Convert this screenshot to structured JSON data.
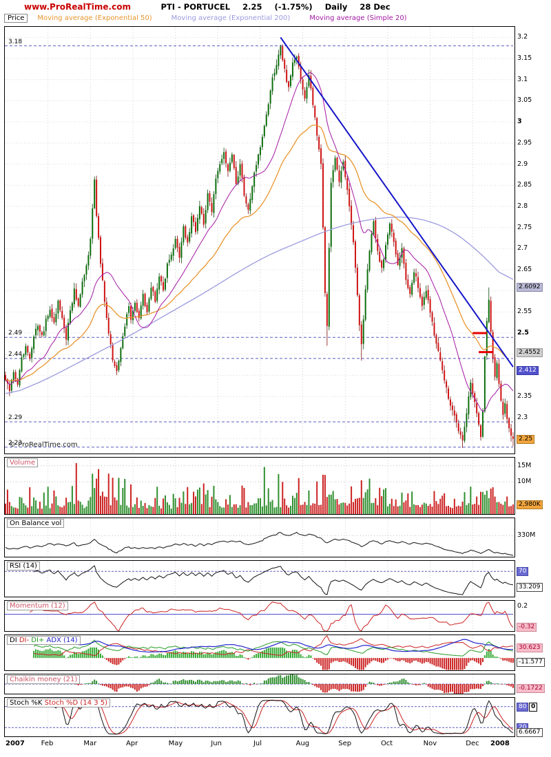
{
  "header": {
    "site": "www.ProRealTime.com",
    "instrument": "PTI - PORTUCEL",
    "last": "2.25",
    "change": "(-1.75%)",
    "period": "Daily",
    "date": "28 Dec"
  },
  "watermark": "© ProRealTime.com",
  "axis": {
    "months": [
      "2007",
      "Feb",
      "Mar",
      "Apr",
      "May",
      "Jun",
      "Jul",
      "Aug",
      "Sep",
      "Oct",
      "Nov",
      "Dec",
      "2008"
    ]
  },
  "legend": {
    "price_label": "Price",
    "items": [
      {
        "label": "Moving average (Exponential 50)",
        "color": "#e8952e"
      },
      {
        "label": "Moving average (Exponential 200)",
        "color": "#9a9ae0"
      },
      {
        "label": "Moving average (Simple 20)",
        "color": "#a318a3"
      }
    ]
  },
  "panel_titles": {
    "volume": [
      {
        "text": "Volume",
        "color": "#cc5566"
      }
    ],
    "obv": [
      {
        "text": "On Balance vol",
        "color": "#000000"
      }
    ],
    "rsi": [
      {
        "text": "RSI (14)",
        "color": "#000000"
      }
    ],
    "momentum": [
      {
        "text": "Momentum (12)",
        "color": "#cc5566"
      }
    ],
    "dmi": [
      {
        "text": "DI ",
        "color": "#000000"
      },
      {
        "text": "DI- ",
        "color": "#cc2222"
      },
      {
        "text": "DI+ ",
        "color": "#229922"
      },
      {
        "text": "ADX (14)",
        "color": "#2222cc"
      }
    ],
    "chaikin": [
      {
        "text": "Chaikin money (21)",
        "color": "#cc5566"
      }
    ],
    "stoch": [
      {
        "text": "Stoch %K ",
        "color": "#000000"
      },
      {
        "text": "Stoch %D (14 3 5)",
        "color": "#cc2222"
      }
    ]
  },
  "chart_data": {
    "type": "candlestick",
    "title": "PTI - PORTUCEL Daily, year 2007 (Jan to Dec), last 2.25 (-1.75%) on 28 Dec",
    "trading_days": 252,
    "price_panel": {
      "ylim": [
        2.215,
        3.225
      ],
      "yticks": [
        3.2,
        3.15,
        3.1,
        3.05,
        3,
        2.95,
        2.9,
        2.85,
        2.8,
        2.75,
        2.7,
        2.65,
        2.6,
        2.55,
        2.5,
        2.45,
        2.4,
        2.35,
        2.3,
        2.25
      ],
      "bold_ticks": [
        3,
        2.5
      ],
      "hidden_ticks": [
        2.6,
        2.45,
        2.4,
        2.25
      ],
      "level_lines": [
        3.18,
        2.49,
        2.44,
        2.29,
        2.23
      ],
      "up_color": "#0c6e0c",
      "down_color": "#cf1212",
      "close_anchors": [
        [
          0,
          2.39
        ],
        [
          2,
          2.36
        ],
        [
          4,
          2.41
        ],
        [
          6,
          2.38
        ],
        [
          8,
          2.44
        ],
        [
          10,
          2.47
        ],
        [
          12,
          2.44
        ],
        [
          14,
          2.49
        ],
        [
          16,
          2.52
        ],
        [
          18,
          2.49
        ],
        [
          20,
          2.53
        ],
        [
          22,
          2.56
        ],
        [
          24,
          2.52
        ],
        [
          26,
          2.58
        ],
        [
          28,
          2.54
        ],
        [
          30,
          2.49
        ],
        [
          32,
          2.55
        ],
        [
          34,
          2.6
        ],
        [
          36,
          2.56
        ],
        [
          38,
          2.62
        ],
        [
          40,
          2.66
        ],
        [
          42,
          2.72
        ],
        [
          43,
          2.8
        ],
        [
          44,
          2.86
        ],
        [
          45,
          2.78
        ],
        [
          47,
          2.66
        ],
        [
          49,
          2.58
        ],
        [
          51,
          2.5
        ],
        [
          53,
          2.44
        ],
        [
          55,
          2.41
        ],
        [
          57,
          2.47
        ],
        [
          59,
          2.52
        ],
        [
          61,
          2.56
        ],
        [
          62,
          2.53
        ],
        [
          64,
          2.57
        ],
        [
          66,
          2.53
        ],
        [
          68,
          2.59
        ],
        [
          70,
          2.55
        ],
        [
          72,
          2.61
        ],
        [
          74,
          2.58
        ],
        [
          76,
          2.64
        ],
        [
          78,
          2.6
        ],
        [
          80,
          2.66
        ],
        [
          82,
          2.69
        ],
        [
          84,
          2.72
        ],
        [
          86,
          2.68
        ],
        [
          88,
          2.75
        ],
        [
          90,
          2.71
        ],
        [
          92,
          2.78
        ],
        [
          94,
          2.74
        ],
        [
          96,
          2.8
        ],
        [
          98,
          2.76
        ],
        [
          100,
          2.83
        ],
        [
          102,
          2.79
        ],
        [
          104,
          2.86
        ],
        [
          106,
          2.9
        ],
        [
          108,
          2.93
        ],
        [
          110,
          2.88
        ],
        [
          112,
          2.92
        ],
        [
          114,
          2.85
        ],
        [
          116,
          2.9
        ],
        [
          118,
          2.83
        ],
        [
          120,
          2.79
        ],
        [
          122,
          2.85
        ],
        [
          124,
          2.9
        ],
        [
          126,
          2.94
        ],
        [
          128,
          2.99
        ],
        [
          130,
          3.04
        ],
        [
          132,
          3.1
        ],
        [
          134,
          3.14
        ],
        [
          136,
          3.18
        ],
        [
          138,
          3.12
        ],
        [
          140,
          3.08
        ],
        [
          142,
          3.14
        ],
        [
          144,
          3.16
        ],
        [
          146,
          3.1
        ],
        [
          148,
          3.06
        ],
        [
          150,
          3.11
        ],
        [
          152,
          3.04
        ],
        [
          154,
          2.97
        ],
        [
          156,
          2.9
        ],
        [
          158,
          2.6
        ],
        [
          159,
          2.52
        ],
        [
          160,
          2.7
        ],
        [
          161,
          2.85
        ],
        [
          163,
          2.91
        ],
        [
          165,
          2.86
        ],
        [
          167,
          2.9
        ],
        [
          169,
          2.84
        ],
        [
          171,
          2.76
        ],
        [
          173,
          2.66
        ],
        [
          175,
          2.52
        ],
        [
          176,
          2.47
        ],
        [
          178,
          2.6
        ],
        [
          180,
          2.7
        ],
        [
          182,
          2.76
        ],
        [
          184,
          2.7
        ],
        [
          186,
          2.65
        ],
        [
          188,
          2.71
        ],
        [
          190,
          2.76
        ],
        [
          192,
          2.71
        ],
        [
          194,
          2.66
        ],
        [
          196,
          2.7
        ],
        [
          198,
          2.63
        ],
        [
          200,
          2.59
        ],
        [
          202,
          2.65
        ],
        [
          204,
          2.61
        ],
        [
          206,
          2.56
        ],
        [
          208,
          2.6
        ],
        [
          210,
          2.55
        ],
        [
          212,
          2.5
        ],
        [
          214,
          2.46
        ],
        [
          216,
          2.41
        ],
        [
          218,
          2.37
        ],
        [
          220,
          2.33
        ],
        [
          222,
          2.3
        ],
        [
          224,
          2.27
        ],
        [
          226,
          2.245
        ],
        [
          228,
          2.31
        ],
        [
          230,
          2.38
        ],
        [
          232,
          2.34
        ],
        [
          234,
          2.28
        ],
        [
          235,
          2.25
        ],
        [
          236,
          2.32
        ],
        [
          237,
          2.44
        ],
        [
          238,
          2.53
        ],
        [
          239,
          2.575
        ],
        [
          240,
          2.5
        ],
        [
          241,
          2.44
        ],
        [
          242,
          2.4
        ],
        [
          243,
          2.43
        ],
        [
          244,
          2.38
        ],
        [
          245,
          2.34
        ],
        [
          246,
          2.31
        ],
        [
          247,
          2.335
        ],
        [
          248,
          2.3
        ],
        [
          249,
          2.28
        ],
        [
          250,
          2.26
        ],
        [
          251,
          2.25
        ]
      ],
      "key_extremes": [
        {
          "day": 136,
          "type": "high",
          "value": 3.183
        },
        {
          "day": 159,
          "type": "low",
          "value": 2.47
        },
        {
          "day": 176,
          "type": "low",
          "value": 2.435
        },
        {
          "day": 222,
          "type": "low",
          "value": 2.292
        },
        {
          "day": 226,
          "type": "low",
          "value": 2.228
        },
        {
          "day": 239,
          "type": "high",
          "value": 2.608
        },
        {
          "day": 251,
          "type": "low",
          "value": 2.232
        }
      ],
      "ema200_anchors": [
        [
          0,
          2.35
        ],
        [
          20,
          2.39
        ],
        [
          40,
          2.44
        ],
        [
          60,
          2.49
        ],
        [
          80,
          2.545
        ],
        [
          100,
          2.6
        ],
        [
          115,
          2.645
        ],
        [
          130,
          2.685
        ],
        [
          145,
          2.715
        ],
        [
          160,
          2.745
        ],
        [
          175,
          2.765
        ],
        [
          190,
          2.775
        ],
        [
          200,
          2.775
        ],
        [
          210,
          2.765
        ],
        [
          220,
          2.745
        ],
        [
          230,
          2.71
        ],
        [
          240,
          2.665
        ],
        [
          251,
          2.609
        ]
      ],
      "sma_period": 20,
      "ema_fast_period": 50,
      "ema_slow_period": 200,
      "trendline": {
        "from": [
          136,
          3.2
        ],
        "to": [
          252,
          2.42
        ],
        "color": "#1414c8"
      },
      "support_marks": [
        {
          "from": 231,
          "to": 238,
          "price": 2.5
        },
        {
          "from": 234,
          "to": 241,
          "price": 2.455
        }
      ],
      "value_boxes": [
        {
          "name": "ema200-value",
          "text": "2.6092",
          "value": 2.6092,
          "bg": "#babad6",
          "fg": "#000000",
          "bd": "#8888aa"
        },
        {
          "name": "ema50-value",
          "text": "2.4552",
          "value": 2.4552,
          "bg": "#cfcfcf",
          "fg": "#000000",
          "bd": "#999999"
        },
        {
          "name": "sma20-value",
          "text": "2.412",
          "value": 2.412,
          "bg": "#5252cc",
          "fg": "#ffffff",
          "bd": "#3333aa"
        },
        {
          "name": "last-price-tag",
          "text": "2.25",
          "value": 2.25,
          "bg": "#f2a43c",
          "fg": "#000000",
          "bd": "#b07a20"
        }
      ]
    },
    "volume_panel": {
      "ylim_millions": [
        0,
        17.5
      ],
      "gridlines": [
        {
          "text": "15M",
          "value": 15
        },
        {
          "text": "10M",
          "value": 10
        }
      ],
      "last_box": {
        "name": "last-volume-tag",
        "text": "2,980K",
        "value": 2.98,
        "bg": "#f2a43c",
        "fg": "#000000",
        "bd": "#b07a20"
      },
      "spikes": [
        [
          35,
          15.8
        ],
        [
          43,
          12.5
        ],
        [
          45,
          11
        ],
        [
          98,
          9.5
        ],
        [
          128,
          14.6
        ],
        [
          137,
          10
        ],
        [
          157,
          12.2
        ],
        [
          176,
          10.5
        ],
        [
          230,
          8.5
        ]
      ],
      "monthly_intensity": [
        0.55,
        0.6,
        0.85,
        0.5,
        0.6,
        0.55,
        0.95,
        0.7,
        0.65,
        0.5,
        0.55,
        0.45
      ]
    },
    "obv_panel": {
      "axis_label": {
        "text": "330M",
        "value": 330
      },
      "ylim_scaled": [
        0,
        600
      ]
    },
    "rsi_panel": {
      "period": 14,
      "ylim": [
        10,
        95
      ],
      "levels": [
        70
      ],
      "level_box": {
        "name": "rsi-70-level",
        "text": "70",
        "value": 70,
        "bg": "#6a6ad2",
        "fg": "#ffffff",
        "bd": "#4444aa"
      },
      "current_box": {
        "name": "rsi-value",
        "text": "33.209",
        "value": 33.209,
        "bg": "#ffffff",
        "fg": "#000000",
        "bd": "#444444"
      }
    },
    "momentum_panel": {
      "period": 12,
      "ylim": [
        -0.42,
        0.34
      ],
      "axis_label": {
        "text": "0.2",
        "value": 0.2
      },
      "current_box": {
        "name": "momentum-value",
        "text": "-0.32",
        "value": -0.32,
        "bg": "#f7bcc8",
        "fg": "#aa0033",
        "bd": "#cc8899"
      }
    },
    "dmi_panel": {
      "period": 14,
      "ylim": [
        -35,
        65
      ],
      "boxes": [
        {
          "name": "di-minus-value",
          "text": "30.623",
          "value": 30.623,
          "bg": "#f7bcc8",
          "fg": "#aa0033",
          "bd": "#cc8899"
        },
        {
          "name": "di-diff-value",
          "text": "-11.577",
          "value": -11.577,
          "bg": "#ffffff",
          "fg": "#000000",
          "bd": "#444444"
        }
      ]
    },
    "chaikin_panel": {
      "period": 21,
      "ylim": [
        -0.42,
        0.42
      ],
      "current_box": {
        "name": "chaikin-value",
        "text": "-0.1722",
        "value": -0.1722,
        "bg": "#f7bcc8",
        "fg": "#aa0033",
        "bd": "#cc8899"
      }
    },
    "stoch_panel": {
      "ylim": [
        -5,
        105
      ],
      "levels": [
        80,
        20
      ],
      "boxes": [
        {
          "name": "stoch-80-level",
          "text": "80",
          "value": 80,
          "bg": "#6a6ad2",
          "fg": "#ffffff",
          "bd": "#4444aa"
        },
        {
          "name": "stoch-zero-box",
          "text": "0",
          "value": 80,
          "dx": 18,
          "bg": "#ffffff",
          "fg": "#000000",
          "bd": "#000000",
          "bold": true
        },
        {
          "name": "stoch-20-level",
          "text": "20",
          "value": 20,
          "bg": "#6a6ad2",
          "fg": "#ffffff",
          "bd": "#4444aa"
        },
        {
          "name": "stoch-k-value",
          "text": "6.6667",
          "value": 6,
          "bg": "#ffffff",
          "fg": "#000000",
          "bd": "#444444"
        }
      ]
    }
  }
}
